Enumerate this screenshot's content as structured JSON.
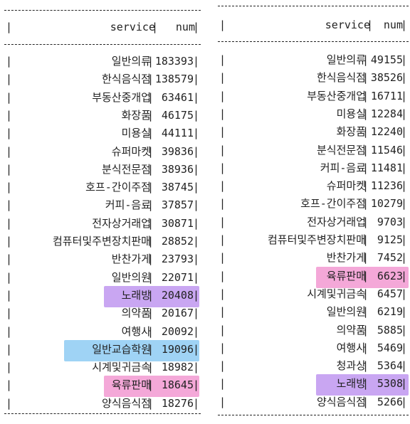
{
  "colors": {
    "highlight_purple": "#c9a6f2",
    "highlight_blue": "#9fd3f5",
    "highlight_pink": "#f4a8d8"
  },
  "left_table": {
    "header": {
      "service": "service",
      "num": "num"
    },
    "rows": [
      {
        "service": "일반의류",
        "num": "183393",
        "highlight": ""
      },
      {
        "service": "한식음식점",
        "num": "138579",
        "highlight": ""
      },
      {
        "service": "부동산중개업",
        "num": "63461",
        "highlight": ""
      },
      {
        "service": "화장품",
        "num": "46175",
        "highlight": ""
      },
      {
        "service": "미용실",
        "num": "44111",
        "highlight": ""
      },
      {
        "service": "슈퍼마켓",
        "num": "39836",
        "highlight": ""
      },
      {
        "service": "분식전문점",
        "num": "38936",
        "highlight": ""
      },
      {
        "service": "호프-간이주점",
        "num": "38745",
        "highlight": ""
      },
      {
        "service": "커피-음료",
        "num": "37857",
        "highlight": ""
      },
      {
        "service": "전자상거래업",
        "num": "30871",
        "highlight": ""
      },
      {
        "service": "컴퓨터및주변장치판매",
        "num": "28852",
        "highlight": ""
      },
      {
        "service": "반찬가게",
        "num": "23793",
        "highlight": ""
      },
      {
        "service": "일반의원",
        "num": "22071",
        "highlight": ""
      },
      {
        "service": "노래방",
        "num": "20408",
        "highlight": "purple"
      },
      {
        "service": "의약품",
        "num": "20167",
        "highlight": ""
      },
      {
        "service": "여행사",
        "num": "20092",
        "highlight": ""
      },
      {
        "service": "일반교습학원",
        "num": "19096",
        "highlight": "blue"
      },
      {
        "service": "시계및귀금속",
        "num": "18982",
        "highlight": ""
      },
      {
        "service": "육류판매",
        "num": "18645",
        "highlight": "pink"
      },
      {
        "service": "양식음식점",
        "num": "18276",
        "highlight": ""
      }
    ]
  },
  "right_table": {
    "header": {
      "service": "service",
      "num": "num"
    },
    "rows": [
      {
        "service": "일반의류",
        "num": "49155",
        "highlight": ""
      },
      {
        "service": "한식음식점",
        "num": "38526",
        "highlight": ""
      },
      {
        "service": "부동산중개업",
        "num": "16711",
        "highlight": ""
      },
      {
        "service": "미용실",
        "num": "12284",
        "highlight": ""
      },
      {
        "service": "화장품",
        "num": "12240",
        "highlight": ""
      },
      {
        "service": "분식전문점",
        "num": "11546",
        "highlight": ""
      },
      {
        "service": "커피-음료",
        "num": "11481",
        "highlight": ""
      },
      {
        "service": "슈퍼마켓",
        "num": "11236",
        "highlight": ""
      },
      {
        "service": "호프-간이주점",
        "num": "10279",
        "highlight": ""
      },
      {
        "service": "전자상거래업",
        "num": "9703",
        "highlight": ""
      },
      {
        "service": "컴퓨터및주변장치판매",
        "num": "9125",
        "highlight": ""
      },
      {
        "service": "반찬가게",
        "num": "7452",
        "highlight": ""
      },
      {
        "service": "육류판매",
        "num": "6623",
        "highlight": "pink"
      },
      {
        "service": "시계및귀금속",
        "num": "6457",
        "highlight": ""
      },
      {
        "service": "일반의원",
        "num": "6219",
        "highlight": ""
      },
      {
        "service": "의약품",
        "num": "5885",
        "highlight": ""
      },
      {
        "service": "여행사",
        "num": "5469",
        "highlight": ""
      },
      {
        "service": "청과상",
        "num": "5364",
        "highlight": ""
      },
      {
        "service": "노래방",
        "num": "5308",
        "highlight": "purple"
      },
      {
        "service": "양식음식점",
        "num": "5266",
        "highlight": ""
      }
    ]
  }
}
